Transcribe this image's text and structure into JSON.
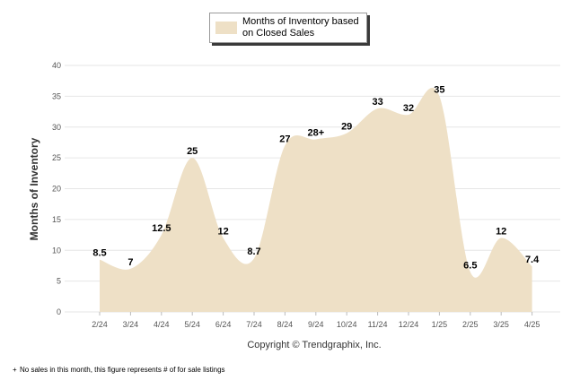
{
  "legend": {
    "label": "Months of Inventory based on Closed Sales"
  },
  "copyright": "Copyright © Trendgraphix, Inc.",
  "footnote": {
    "mark": "+",
    "text": "No sales in this month, this figure represents # of for sale listings"
  },
  "colors": {
    "area_fill": "#eee0c6",
    "grid": "#e6e6e6",
    "axis_text": "#555555",
    "label_text": "#000000"
  },
  "chart_data": {
    "type": "area",
    "ylabel": "Months of Inventory",
    "xlabel": "",
    "ylim": [
      0,
      40
    ],
    "yticks": [
      0,
      5,
      10,
      15,
      20,
      25,
      30,
      35,
      40
    ],
    "grid": true,
    "legend_position": "top-center",
    "categories": [
      "2/24",
      "3/24",
      "4/24",
      "5/24",
      "6/24",
      "7/24",
      "8/24",
      "9/24",
      "10/24",
      "11/24",
      "12/24",
      "1/25",
      "2/25",
      "3/25",
      "4/25"
    ],
    "series": [
      {
        "name": "Months of Inventory based on Closed Sales",
        "values": [
          8.5,
          7,
          12.5,
          25,
          12,
          8.7,
          27,
          28,
          29,
          33,
          32,
          35,
          6.5,
          12,
          7.4
        ],
        "labels": [
          "8.5",
          "7",
          "12.5",
          "25",
          "12",
          "8.7",
          "27",
          "28+",
          "29",
          "33",
          "32",
          "35",
          "6.5",
          "12",
          "7.4"
        ]
      }
    ]
  }
}
